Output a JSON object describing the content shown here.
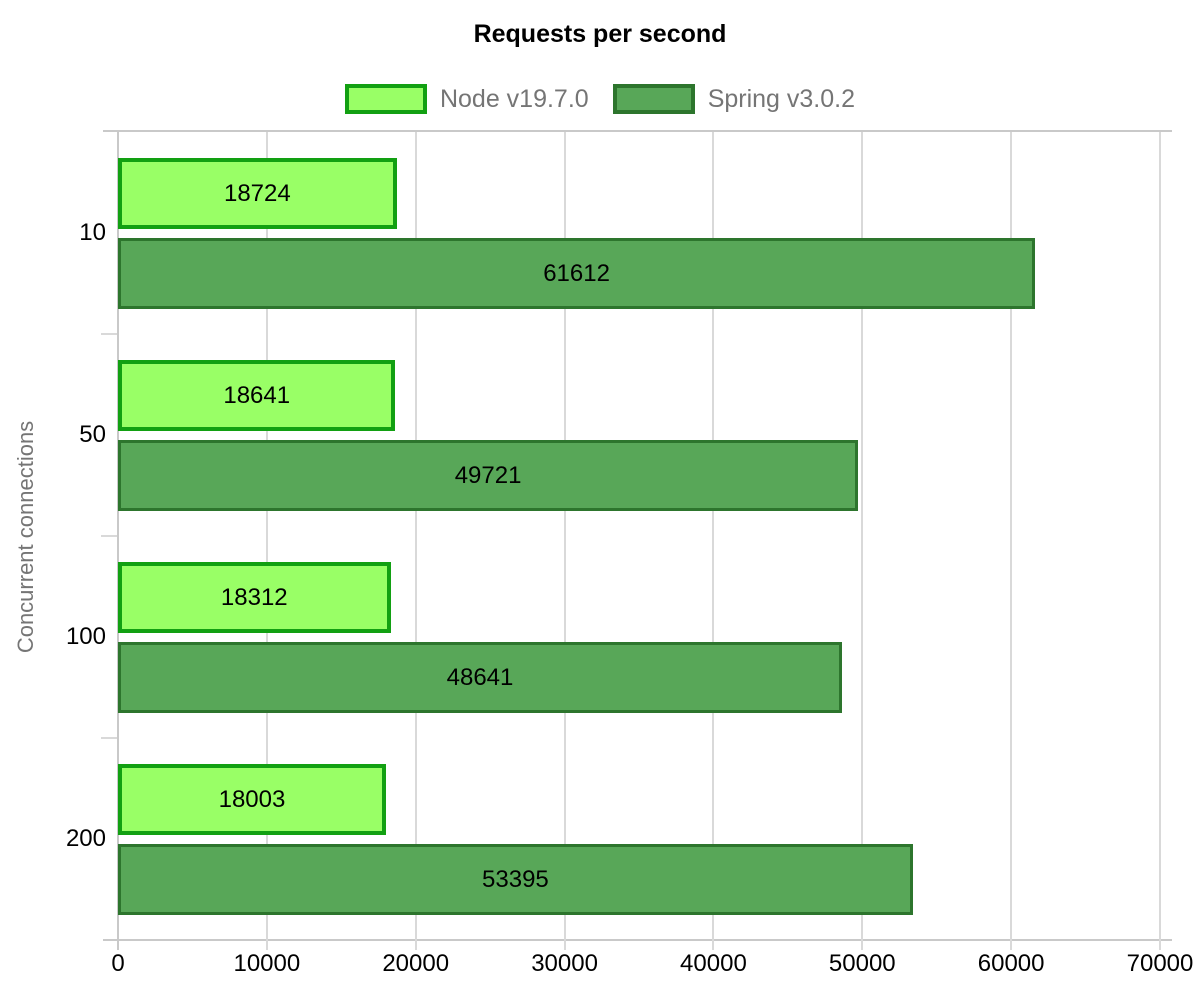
{
  "chart_data": {
    "type": "bar",
    "orientation": "horizontal",
    "title": "Requests per second",
    "xlabel": "",
    "ylabel": "Concurrent connections",
    "categories": [
      "10",
      "50",
      "100",
      "200"
    ],
    "series": [
      {
        "name": "Node v19.7.0",
        "fill": "#99ff66",
        "border": "#12a012",
        "values": [
          18724,
          18641,
          18312,
          18003
        ]
      },
      {
        "name": "Spring v3.0.2",
        "fill": "#58a758",
        "border": "#2d752d",
        "values": [
          61612,
          49721,
          48641,
          53395
        ]
      }
    ],
    "xlim": [
      0,
      70000
    ],
    "xticks": [
      0,
      10000,
      20000,
      30000,
      40000,
      50000,
      60000,
      70000
    ],
    "grid": true,
    "legend_position": "top",
    "value_labels": "inside-center",
    "text_color": "#000000",
    "muted_text_color": "#757575"
  }
}
